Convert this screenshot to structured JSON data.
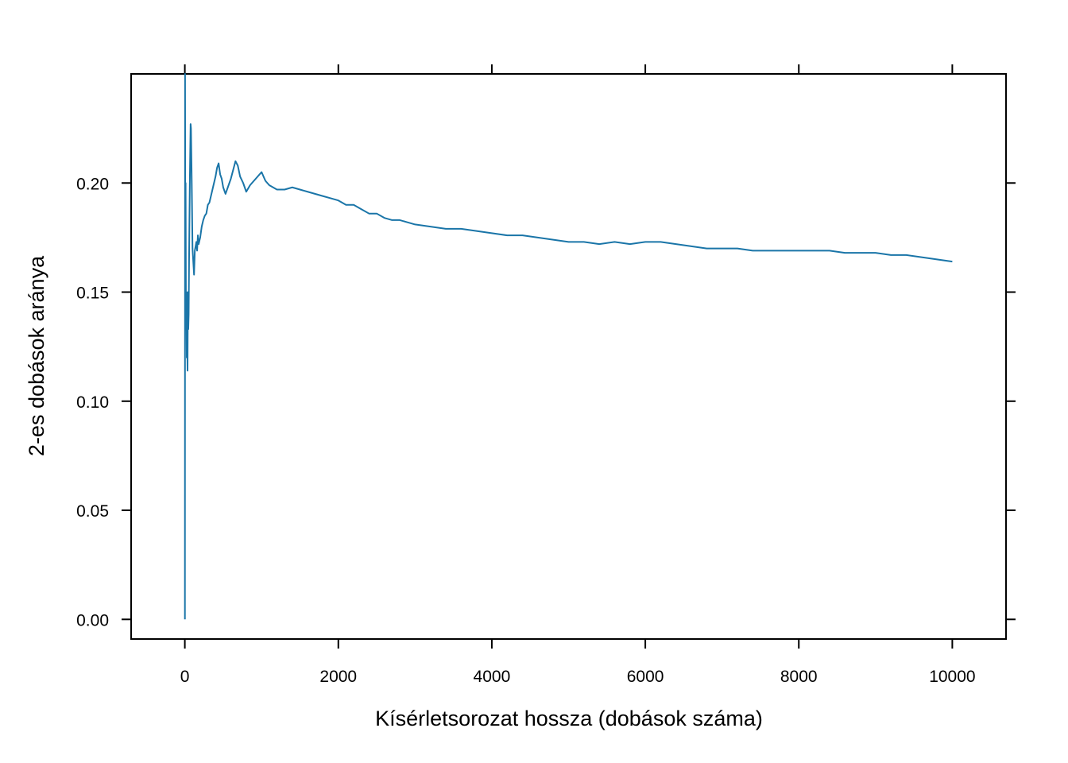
{
  "chart_data": {
    "type": "line",
    "title": "",
    "xlabel": "Kísérletsorozat hossza (dobások száma)",
    "ylabel": "2-es dobások aránya",
    "xlim": [
      -700,
      10700
    ],
    "ylim": [
      -0.009,
      0.25
    ],
    "x_ticks": [
      0,
      2000,
      4000,
      6000,
      8000,
      10000
    ],
    "x_tick_labels": [
      "0",
      "2000",
      "4000",
      "6000",
      "8000",
      "10000"
    ],
    "y_ticks": [
      0.0,
      0.05,
      0.1,
      0.15,
      0.2
    ],
    "y_tick_labels": [
      "0.00",
      "0.05",
      "0.10",
      "0.15",
      "0.20"
    ],
    "grid": false,
    "series": [
      {
        "color": "#1a75a8",
        "x": [
          1,
          3,
          6,
          10,
          15,
          20,
          25,
          30,
          35,
          40,
          45,
          50,
          55,
          60,
          65,
          70,
          75,
          80,
          90,
          100,
          110,
          120,
          130,
          140,
          150,
          160,
          170,
          180,
          200,
          220,
          240,
          260,
          280,
          300,
          320,
          340,
          360,
          380,
          400,
          420,
          440,
          460,
          480,
          500,
          530,
          560,
          600,
          630,
          660,
          690,
          720,
          760,
          800,
          850,
          900,
          950,
          1000,
          1050,
          1100,
          1150,
          1200,
          1300,
          1400,
          1500,
          1600,
          1700,
          1800,
          1900,
          2000,
          2100,
          2200,
          2300,
          2400,
          2500,
          2600,
          2700,
          2800,
          2900,
          3000,
          3200,
          3400,
          3600,
          3800,
          4000,
          4200,
          4400,
          4600,
          4800,
          5000,
          5200,
          5400,
          5600,
          5800,
          6000,
          6200,
          6400,
          6600,
          6800,
          7000,
          7200,
          7400,
          7600,
          7800,
          8000,
          8200,
          8400,
          8600,
          8800,
          9000,
          9200,
          9400,
          9600,
          9800,
          10000
        ],
        "values": [
          0.0,
          0.25,
          0.167,
          0.2,
          0.133,
          0.15,
          0.12,
          0.133,
          0.114,
          0.15,
          0.133,
          0.14,
          0.164,
          0.183,
          0.2,
          0.214,
          0.227,
          0.225,
          0.2,
          0.17,
          0.164,
          0.158,
          0.169,
          0.171,
          0.173,
          0.169,
          0.176,
          0.172,
          0.175,
          0.18,
          0.183,
          0.185,
          0.186,
          0.19,
          0.191,
          0.194,
          0.197,
          0.2,
          0.203,
          0.207,
          0.209,
          0.204,
          0.202,
          0.198,
          0.195,
          0.198,
          0.202,
          0.206,
          0.21,
          0.208,
          0.203,
          0.2,
          0.196,
          0.199,
          0.201,
          0.203,
          0.205,
          0.201,
          0.199,
          0.198,
          0.197,
          0.197,
          0.198,
          0.197,
          0.196,
          0.195,
          0.194,
          0.193,
          0.192,
          0.19,
          0.19,
          0.188,
          0.186,
          0.186,
          0.184,
          0.183,
          0.183,
          0.182,
          0.181,
          0.18,
          0.179,
          0.179,
          0.178,
          0.177,
          0.176,
          0.176,
          0.175,
          0.174,
          0.173,
          0.173,
          0.172,
          0.173,
          0.172,
          0.173,
          0.173,
          0.172,
          0.171,
          0.17,
          0.17,
          0.17,
          0.169,
          0.169,
          0.169,
          0.169,
          0.169,
          0.169,
          0.168,
          0.168,
          0.168,
          0.167,
          0.167,
          0.166,
          0.165,
          0.164
        ]
      }
    ]
  }
}
